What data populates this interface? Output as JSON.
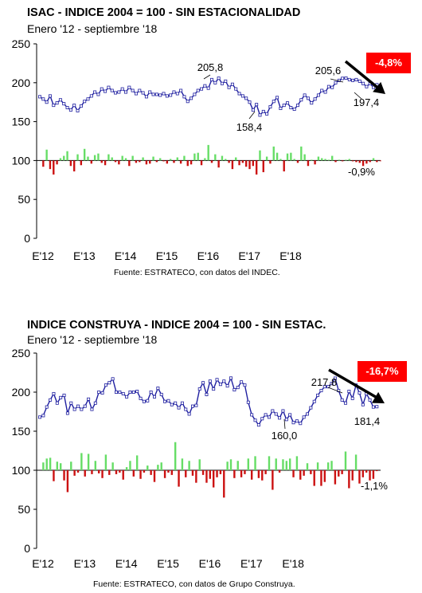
{
  "chart_data": [
    {
      "type": "line",
      "title": "ISAC  - INDICE 2004 = 100  - SIN ESTACIONALIDAD",
      "subtitle": "Enero '12 - septiembre '18",
      "source": "Fuente: ESTRATECO, con datos del INDEC.",
      "badge": "-4,8%",
      "xlabels": [
        "E'12",
        "E'13",
        "E'14",
        "E'15",
        "E'16",
        "E'17",
        "E'18"
      ],
      "yticks": [
        "0",
        "50",
        "100",
        "150",
        "200",
        "250"
      ],
      "ylim": [
        0,
        250
      ],
      "baseline": 100,
      "grid": false,
      "series": [
        {
          "color": "#1f1fa0",
          "values": [
            182,
            179,
            175,
            183,
            171,
            174,
            178,
            173,
            168,
            165,
            171,
            164,
            170,
            176,
            179,
            183,
            188,
            185,
            192,
            189,
            194,
            190,
            187,
            188,
            192,
            188,
            194,
            190,
            186,
            190,
            187,
            182,
            188,
            185,
            185,
            184,
            186,
            183,
            184,
            188,
            186,
            190,
            182,
            176,
            180,
            185,
            190,
            192,
            196,
            193,
            204,
            200,
            205.8,
            199,
            202,
            194,
            198,
            192,
            186,
            183,
            180,
            175,
            165,
            172,
            158.4,
            163,
            160,
            169,
            176,
            181,
            167,
            171,
            174,
            168,
            166,
            171,
            178,
            184,
            180,
            174,
            179,
            184,
            190,
            188,
            195,
            194,
            200,
            203,
            205.6,
            206,
            204,
            203,
            204,
            202,
            199,
            195,
            199,
            194,
            197.4
          ]
        }
      ],
      "annotations": [
        {
          "text": "205,8",
          "index": 52
        },
        {
          "text": "158,4",
          "index": 64
        },
        {
          "text": "205,6",
          "index": 88
        },
        {
          "text": "197,4",
          "index": 98
        },
        {
          "text": "-0,9%"
        }
      ],
      "bars": {
        "positive_color": "#66dd66",
        "negative_color": "#cc1111",
        "values": [
          -8,
          14,
          -11,
          -18,
          -5,
          3,
          6,
          12,
          -7,
          -14,
          8,
          -6,
          15,
          5,
          -4,
          7,
          9,
          -3,
          -6,
          8,
          4,
          -2,
          -5,
          6,
          3,
          -7,
          6,
          -3,
          -2,
          4,
          -5,
          -4,
          5,
          -2,
          3,
          -1,
          -4,
          2,
          -3,
          4,
          -4,
          6,
          -7,
          -5,
          9,
          10,
          -6,
          3,
          20,
          -3,
          8,
          -9,
          6,
          2,
          -3,
          -11,
          4,
          -6,
          -3,
          -8,
          -11,
          -7,
          -18,
          13,
          -15,
          5,
          -4,
          18,
          10,
          2,
          -14,
          9,
          10,
          2,
          -3,
          18,
          8,
          -7,
          1,
          -5,
          5,
          3,
          2,
          1,
          6,
          -2,
          1,
          -1,
          1,
          2,
          -1,
          -2,
          -3,
          -7,
          -4,
          -2,
          3,
          -2,
          -0.9
        ]
      }
    },
    {
      "type": "line",
      "title": "INDICE CONSTRUYA  - INDICE 2004 = 100  - SIN ESTAC.",
      "subtitle": "Enero '12 - septiembre '18",
      "source": "Fuente: ESTRATECO, con datos de Grupo Construya.",
      "badge": "-16,7%",
      "xlabels": [
        "E'12",
        "E'13",
        "E'14",
        "E'15",
        "E'16",
        "E'17",
        "E'18"
      ],
      "yticks": [
        "0",
        "50",
        "100",
        "150",
        "200",
        "250"
      ],
      "ylim": [
        0,
        250
      ],
      "baseline": 100,
      "grid": false,
      "series": [
        {
          "color": "#1f1fa0",
          "values": [
            168,
            170,
            181,
            190,
            198,
            186,
            193,
            196,
            173,
            186,
            178,
            182,
            178,
            182,
            191,
            178,
            186,
            200,
            199,
            209,
            212,
            217,
            200,
            200,
            198,
            194,
            200,
            200,
            201,
            192,
            188,
            189,
            200,
            194,
            205,
            197,
            188,
            189,
            184,
            186,
            180,
            186,
            178,
            172,
            182,
            183,
            204,
            212,
            197,
            214,
            204,
            216,
            210,
            214,
            208,
            218,
            203,
            206,
            213,
            209,
            187,
            171,
            164,
            158,
            166,
            171,
            168,
            176,
            172,
            167,
            176,
            165,
            171,
            161,
            163,
            160.0,
            168,
            172,
            180,
            188,
            196,
            202,
            207,
            207,
            211,
            217.8,
            202,
            190,
            186,
            201,
            192,
            209,
            199,
            184,
            198,
            190,
            181,
            181.4
          ]
        }
      ],
      "annotations": [
        {
          "text": "217,8",
          "index": 85
        },
        {
          "text": "160,0",
          "index": 75
        },
        {
          "text": "181,4",
          "index": 97
        },
        {
          "text": "-1,1%"
        }
      ],
      "bars": {
        "positive_color": "#66dd66",
        "negative_color": "#cc1111",
        "values": [
          10,
          15,
          16,
          -14,
          11,
          9,
          -13,
          -28,
          11,
          -7,
          -3,
          22,
          -8,
          21,
          -5,
          12,
          -4,
          -10,
          20,
          -6,
          10,
          -5,
          -3,
          -12,
          4,
          12,
          -8,
          19,
          -11,
          -3,
          6,
          -6,
          -15,
          7,
          10,
          -10,
          -3,
          -6,
          36,
          -21,
          15,
          -9,
          12,
          -7,
          -16,
          14,
          -6,
          -16,
          -11,
          -22,
          -9,
          -5,
          -35,
          11,
          14,
          -10,
          12,
          -9,
          -5,
          15,
          -12,
          18,
          -10,
          -13,
          -5,
          18,
          -25,
          15,
          -3,
          14,
          12,
          15,
          -9,
          18,
          -12,
          -7,
          9,
          -5,
          -20,
          10,
          -20,
          -15,
          10,
          12,
          -18,
          -8,
          -5,
          24,
          -23,
          -13,
          20,
          -17,
          -9,
          -3,
          -13,
          -11,
          -1.1
        ]
      }
    }
  ]
}
